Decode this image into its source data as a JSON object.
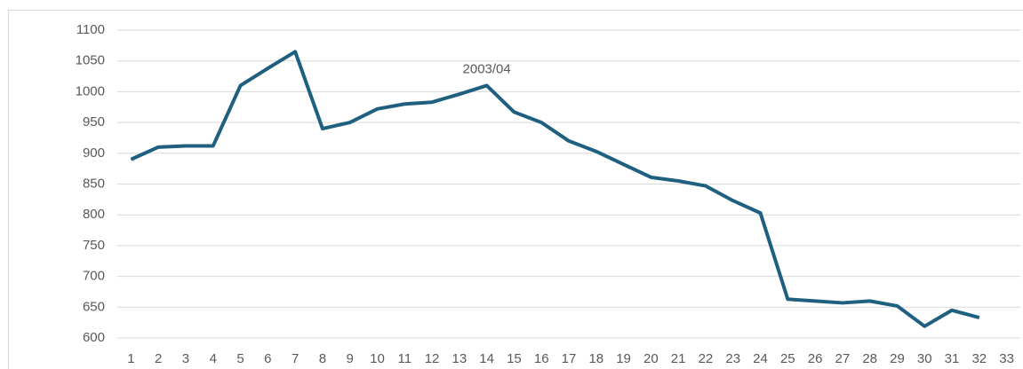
{
  "chart_data": {
    "type": "line",
    "categories": [
      "1",
      "2",
      "3",
      "4",
      "5",
      "6",
      "7",
      "8",
      "9",
      "10",
      "11",
      "12",
      "13",
      "14",
      "15",
      "16",
      "17",
      "18",
      "19",
      "20",
      "21",
      "22",
      "23",
      "24",
      "25",
      "26",
      "27",
      "28",
      "29",
      "30",
      "31",
      "32",
      "33"
    ],
    "series": [
      {
        "color": "#1f5f80",
        "values": [
          890,
          910,
          912,
          912,
          1010,
          1038,
          1065,
          940,
          950,
          972,
          980,
          983,
          996,
          1010,
          967,
          950,
          920,
          903,
          882,
          861,
          855,
          847,
          823,
          803,
          663,
          660,
          657,
          660,
          652,
          619,
          645,
          633,
          null
        ]
      }
    ],
    "annotations": [
      {
        "text": "2003/04",
        "x": "14"
      }
    ],
    "ylim": [
      600,
      1100
    ],
    "yticks": [
      600,
      650,
      700,
      750,
      800,
      850,
      900,
      950,
      1000,
      1050,
      1100
    ],
    "grid": true
  }
}
